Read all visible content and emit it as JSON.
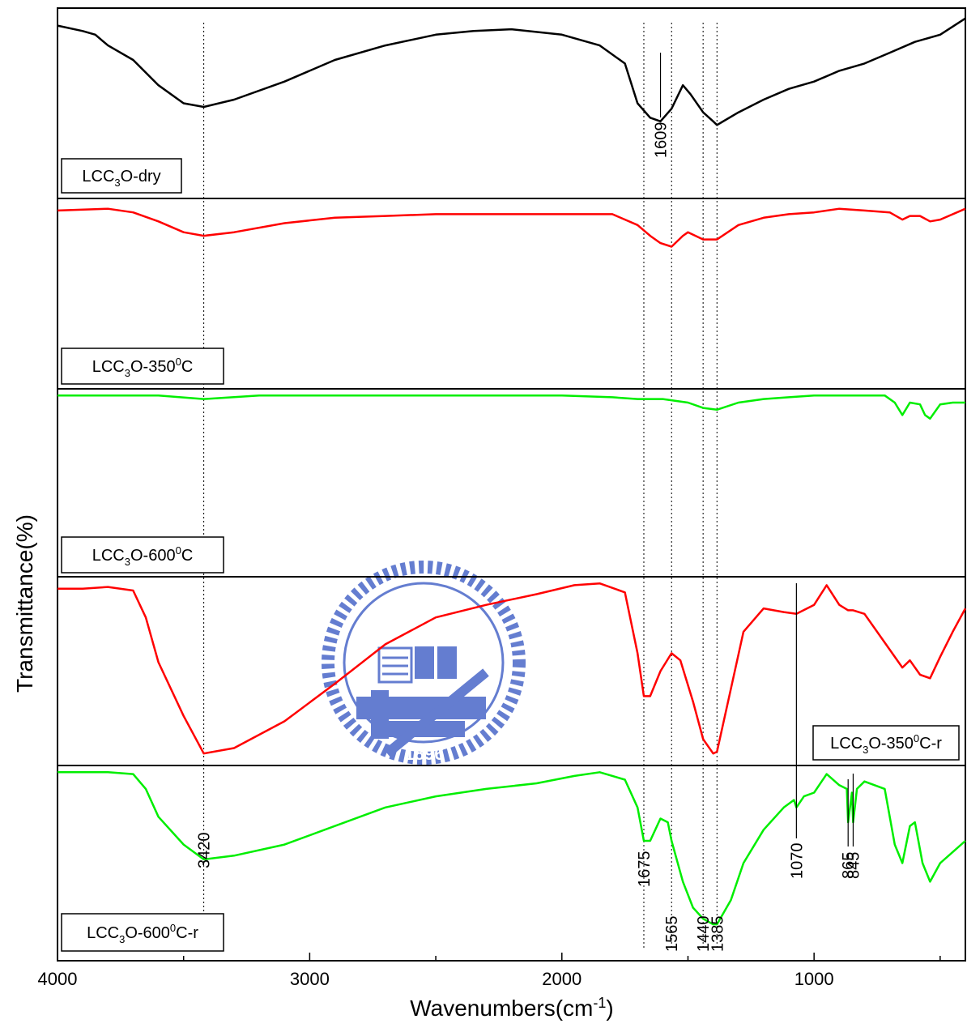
{
  "chart_data": {
    "type": "line",
    "xlabel": "Wavenumbers(cm-1)",
    "ylabel": "Transmittance(%)",
    "xlim": [
      4000,
      400
    ],
    "x_reversed": true,
    "x_ticks": [
      4000,
      3000,
      2000,
      1000
    ],
    "series": [
      {
        "name": "LCC3O-dry",
        "label_parts": [
          "LCC",
          "3",
          "O-dry"
        ],
        "color": "#000000",
        "points": [
          [
            4000,
            0.93
          ],
          [
            3900,
            0.9
          ],
          [
            3850,
            0.88
          ],
          [
            3800,
            0.82
          ],
          [
            3700,
            0.74
          ],
          [
            3600,
            0.6
          ],
          [
            3500,
            0.5
          ],
          [
            3420,
            0.48
          ],
          [
            3300,
            0.52
          ],
          [
            3100,
            0.62
          ],
          [
            2900,
            0.74
          ],
          [
            2700,
            0.82
          ],
          [
            2500,
            0.88
          ],
          [
            2350,
            0.9
          ],
          [
            2200,
            0.91
          ],
          [
            2000,
            0.88
          ],
          [
            1850,
            0.82
          ],
          [
            1750,
            0.72
          ],
          [
            1700,
            0.5
          ],
          [
            1650,
            0.42
          ],
          [
            1609,
            0.4
          ],
          [
            1565,
            0.47
          ],
          [
            1520,
            0.6
          ],
          [
            1490,
            0.55
          ],
          [
            1440,
            0.45
          ],
          [
            1400,
            0.4
          ],
          [
            1385,
            0.38
          ],
          [
            1300,
            0.45
          ],
          [
            1200,
            0.52
          ],
          [
            1100,
            0.58
          ],
          [
            1000,
            0.62
          ],
          [
            900,
            0.68
          ],
          [
            800,
            0.72
          ],
          [
            700,
            0.78
          ],
          [
            600,
            0.84
          ],
          [
            500,
            0.88
          ],
          [
            400,
            0.97
          ]
        ]
      },
      {
        "name": "LCC3O-3500C",
        "label_parts": [
          "LCC",
          "3",
          "O-350",
          "0",
          "C"
        ],
        "color": "#ff0000",
        "points": [
          [
            4000,
            0.96
          ],
          [
            3800,
            0.97
          ],
          [
            3700,
            0.95
          ],
          [
            3600,
            0.9
          ],
          [
            3500,
            0.84
          ],
          [
            3420,
            0.82
          ],
          [
            3300,
            0.84
          ],
          [
            3100,
            0.89
          ],
          [
            2900,
            0.92
          ],
          [
            2700,
            0.93
          ],
          [
            2500,
            0.94
          ],
          [
            2300,
            0.94
          ],
          [
            2000,
            0.94
          ],
          [
            1800,
            0.94
          ],
          [
            1700,
            0.88
          ],
          [
            1650,
            0.82
          ],
          [
            1609,
            0.78
          ],
          [
            1565,
            0.76
          ],
          [
            1520,
            0.82
          ],
          [
            1500,
            0.84
          ],
          [
            1440,
            0.8
          ],
          [
            1400,
            0.8
          ],
          [
            1385,
            0.8
          ],
          [
            1300,
            0.88
          ],
          [
            1200,
            0.92
          ],
          [
            1100,
            0.94
          ],
          [
            1000,
            0.95
          ],
          [
            900,
            0.97
          ],
          [
            800,
            0.96
          ],
          [
            700,
            0.95
          ],
          [
            650,
            0.91
          ],
          [
            620,
            0.93
          ],
          [
            580,
            0.93
          ],
          [
            540,
            0.9
          ],
          [
            500,
            0.91
          ],
          [
            400,
            0.97
          ]
        ]
      },
      {
        "name": "LCC3O-6000C",
        "label_parts": [
          "LCC",
          "3",
          "O-600",
          "0",
          "C"
        ],
        "color": "#00ee00",
        "points": [
          [
            4000,
            0.99
          ],
          [
            3800,
            0.99
          ],
          [
            3600,
            0.99
          ],
          [
            3420,
            0.97
          ],
          [
            3200,
            0.99
          ],
          [
            3000,
            0.99
          ],
          [
            2800,
            0.99
          ],
          [
            2500,
            0.99
          ],
          [
            2200,
            0.99
          ],
          [
            2000,
            0.99
          ],
          [
            1800,
            0.98
          ],
          [
            1700,
            0.97
          ],
          [
            1600,
            0.97
          ],
          [
            1500,
            0.95
          ],
          [
            1440,
            0.92
          ],
          [
            1385,
            0.91
          ],
          [
            1300,
            0.95
          ],
          [
            1200,
            0.97
          ],
          [
            1100,
            0.98
          ],
          [
            1000,
            0.99
          ],
          [
            900,
            0.99
          ],
          [
            800,
            0.99
          ],
          [
            720,
            0.99
          ],
          [
            680,
            0.95
          ],
          [
            650,
            0.88
          ],
          [
            620,
            0.95
          ],
          [
            580,
            0.94
          ],
          [
            560,
            0.88
          ],
          [
            540,
            0.86
          ],
          [
            500,
            0.94
          ],
          [
            450,
            0.95
          ],
          [
            400,
            0.95
          ]
        ]
      },
      {
        "name": "LCC3O-3500C-r",
        "label_parts": [
          "LCC",
          "3",
          "O-350",
          "0",
          "C-r"
        ],
        "color": "#ff0000",
        "points": [
          [
            4000,
            0.96
          ],
          [
            3900,
            0.96
          ],
          [
            3800,
            0.97
          ],
          [
            3700,
            0.95
          ],
          [
            3650,
            0.8
          ],
          [
            3600,
            0.55
          ],
          [
            3500,
            0.25
          ],
          [
            3420,
            0.04
          ],
          [
            3300,
            0.07
          ],
          [
            3100,
            0.22
          ],
          [
            2900,
            0.43
          ],
          [
            2700,
            0.65
          ],
          [
            2500,
            0.8
          ],
          [
            2300,
            0.87
          ],
          [
            2100,
            0.93
          ],
          [
            1950,
            0.98
          ],
          [
            1850,
            0.99
          ],
          [
            1750,
            0.94
          ],
          [
            1700,
            0.6
          ],
          [
            1675,
            0.36
          ],
          [
            1650,
            0.36
          ],
          [
            1609,
            0.5
          ],
          [
            1565,
            0.6
          ],
          [
            1530,
            0.56
          ],
          [
            1480,
            0.33
          ],
          [
            1440,
            0.12
          ],
          [
            1400,
            0.04
          ],
          [
            1385,
            0.05
          ],
          [
            1330,
            0.4
          ],
          [
            1280,
            0.72
          ],
          [
            1200,
            0.85
          ],
          [
            1120,
            0.83
          ],
          [
            1070,
            0.82
          ],
          [
            1000,
            0.87
          ],
          [
            950,
            0.98
          ],
          [
            900,
            0.87
          ],
          [
            865,
            0.84
          ],
          [
            845,
            0.84
          ],
          [
            800,
            0.82
          ],
          [
            700,
            0.62
          ],
          [
            650,
            0.52
          ],
          [
            620,
            0.56
          ],
          [
            580,
            0.48
          ],
          [
            540,
            0.46
          ],
          [
            500,
            0.58
          ],
          [
            450,
            0.72
          ],
          [
            400,
            0.85
          ]
        ]
      },
      {
        "name": "LCC3O-6000C-r",
        "label_parts": [
          "LCC",
          "3",
          "O-600",
          "0",
          "C-r"
        ],
        "color": "#00ee00",
        "points": [
          [
            4000,
            0.99
          ],
          [
            3900,
            0.99
          ],
          [
            3800,
            0.99
          ],
          [
            3700,
            0.98
          ],
          [
            3650,
            0.9
          ],
          [
            3600,
            0.75
          ],
          [
            3500,
            0.6
          ],
          [
            3420,
            0.52
          ],
          [
            3300,
            0.54
          ],
          [
            3100,
            0.6
          ],
          [
            2900,
            0.7
          ],
          [
            2700,
            0.8
          ],
          [
            2500,
            0.86
          ],
          [
            2300,
            0.9
          ],
          [
            2100,
            0.93
          ],
          [
            1950,
            0.97
          ],
          [
            1850,
            0.99
          ],
          [
            1750,
            0.95
          ],
          [
            1700,
            0.8
          ],
          [
            1675,
            0.62
          ],
          [
            1650,
            0.62
          ],
          [
            1609,
            0.74
          ],
          [
            1580,
            0.72
          ],
          [
            1565,
            0.62
          ],
          [
            1520,
            0.4
          ],
          [
            1480,
            0.26
          ],
          [
            1440,
            0.2
          ],
          [
            1400,
            0.17
          ],
          [
            1385,
            0.17
          ],
          [
            1330,
            0.3
          ],
          [
            1280,
            0.5
          ],
          [
            1200,
            0.68
          ],
          [
            1120,
            0.8
          ],
          [
            1080,
            0.84
          ],
          [
            1070,
            0.8
          ],
          [
            1040,
            0.86
          ],
          [
            1000,
            0.88
          ],
          [
            950,
            0.98
          ],
          [
            900,
            0.92
          ],
          [
            870,
            0.9
          ],
          [
            865,
            0.72
          ],
          [
            850,
            0.88
          ],
          [
            845,
            0.72
          ],
          [
            830,
            0.9
          ],
          [
            800,
            0.94
          ],
          [
            720,
            0.9
          ],
          [
            680,
            0.6
          ],
          [
            650,
            0.5
          ],
          [
            620,
            0.7
          ],
          [
            600,
            0.72
          ],
          [
            570,
            0.5
          ],
          [
            540,
            0.4
          ],
          [
            500,
            0.5
          ],
          [
            450,
            0.56
          ],
          [
            400,
            0.62
          ]
        ]
      }
    ],
    "reference_lines": [
      3420,
      1675,
      1565,
      1440,
      1385
    ],
    "annotations": [
      {
        "text": "1609",
        "x": 1609,
        "panel": 0
      },
      {
        "text": "3420",
        "x": 3420,
        "panel": 4
      },
      {
        "text": "1675",
        "x": 1675,
        "panel": 4
      },
      {
        "text": "1565",
        "x": 1565,
        "panel": 4
      },
      {
        "text": "1440",
        "x": 1440,
        "panel": 4
      },
      {
        "text": "1385",
        "x": 1385,
        "panel": 4
      },
      {
        "text": "1070",
        "x": 1070,
        "panel": 4
      },
      {
        "text": "865",
        "x": 865,
        "panel": 4
      },
      {
        "text": "845",
        "x": 845,
        "panel": 4
      }
    ]
  },
  "watermark": {
    "text": "E S A 1896",
    "color": "#4a67c8"
  }
}
